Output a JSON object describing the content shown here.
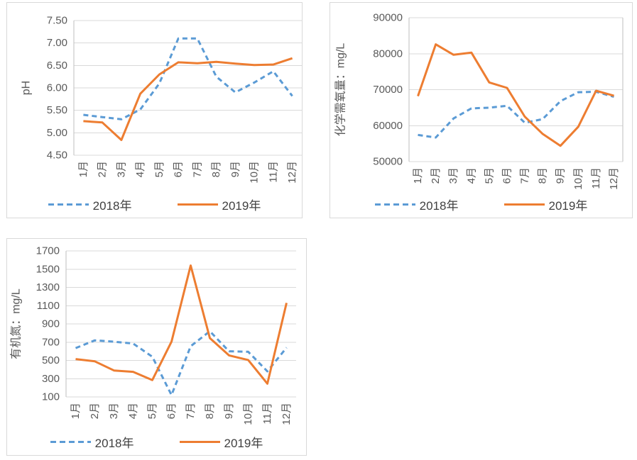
{
  "colors": {
    "series_2018": "#5B9BD5",
    "series_2019": "#ED7D31",
    "gridline": "#d9d9d9",
    "axis_line": "#bfbfbf",
    "axis_text": "#595959",
    "card_border": "#d9d9d9",
    "legend_text": "#404040"
  },
  "months": [
    "1月",
    "2月",
    "3月",
    "4月",
    "5月",
    "6月",
    "7月",
    "8月",
    "9月",
    "10月",
    "11月",
    "12月"
  ],
  "chart_data": [
    {
      "type": "line",
      "title": "",
      "xlabel": "",
      "ylabel": "pH",
      "grid": true,
      "legend_position": "bottom",
      "categories": [
        "1月",
        "2月",
        "3月",
        "4月",
        "5月",
        "6月",
        "7月",
        "8月",
        "9月",
        "10月",
        "11月",
        "12月"
      ],
      "ylim": [
        4.5,
        7.5
      ],
      "ytick_values": [
        4.5,
        5.0,
        5.5,
        6.0,
        6.5,
        7.0,
        7.5
      ],
      "ytick_labels": [
        "4.50",
        "5.00",
        "5.50",
        "6.00",
        "6.50",
        "7.00",
        "7.50"
      ],
      "series": [
        {
          "name": "2018年",
          "style": "dashed",
          "color": "#5B9BD5",
          "values": [
            5.4,
            5.35,
            5.3,
            5.52,
            6.1,
            7.1,
            7.1,
            6.25,
            5.9,
            6.12,
            6.37,
            5.82
          ]
        },
        {
          "name": "2019年",
          "style": "solid",
          "color": "#ED7D31",
          "values": [
            5.26,
            5.23,
            4.84,
            5.87,
            6.3,
            6.57,
            6.55,
            6.58,
            6.54,
            6.51,
            6.52,
            6.66
          ]
        }
      ]
    },
    {
      "type": "line",
      "title": "",
      "xlabel": "",
      "ylabel": "化学需氧量：mg/L",
      "grid": true,
      "legend_position": "bottom",
      "categories": [
        "1月",
        "2月",
        "3月",
        "4月",
        "5月",
        "6月",
        "7月",
        "8月",
        "9月",
        "10月",
        "11月",
        "12月"
      ],
      "ylim": [
        50000,
        90000
      ],
      "ytick_values": [
        50000,
        60000,
        70000,
        80000,
        90000
      ],
      "ytick_labels": [
        "50000",
        "60000",
        "70000",
        "80000",
        "90000"
      ],
      "series": [
        {
          "name": "2018年",
          "style": "dashed",
          "color": "#5B9BD5",
          "values": [
            57400,
            56700,
            62000,
            64800,
            65000,
            65500,
            60800,
            61800,
            66800,
            69300,
            69400,
            68000
          ]
        },
        {
          "name": "2019年",
          "style": "solid",
          "color": "#ED7D31",
          "values": [
            68200,
            82600,
            79700,
            80300,
            72000,
            70500,
            62500,
            57700,
            54400,
            59700,
            69700,
            68300
          ]
        }
      ]
    },
    {
      "type": "line",
      "title": "",
      "xlabel": "",
      "ylabel": "有机氮：mg/L",
      "grid": true,
      "legend_position": "bottom",
      "categories": [
        "1月",
        "2月",
        "3月",
        "4月",
        "5月",
        "6月",
        "7月",
        "8月",
        "9月",
        "10月",
        "11月",
        "12月"
      ],
      "ylim": [
        100,
        1700
      ],
      "ytick_values": [
        100,
        300,
        500,
        700,
        900,
        1100,
        1300,
        1500,
        1700
      ],
      "ytick_labels": [
        "100",
        "300",
        "500",
        "700",
        "900",
        "1100",
        "1300",
        "1500",
        "1700"
      ],
      "series": [
        {
          "name": "2018年",
          "style": "dashed",
          "color": "#5B9BD5",
          "values": [
            635,
            720,
            705,
            685,
            540,
            120,
            655,
            820,
            600,
            595,
            380,
            640
          ]
        },
        {
          "name": "2019年",
          "style": "solid",
          "color": "#ED7D31",
          "values": [
            515,
            490,
            390,
            375,
            285,
            705,
            1540,
            745,
            555,
            505,
            245,
            1130
          ]
        }
      ]
    }
  ]
}
